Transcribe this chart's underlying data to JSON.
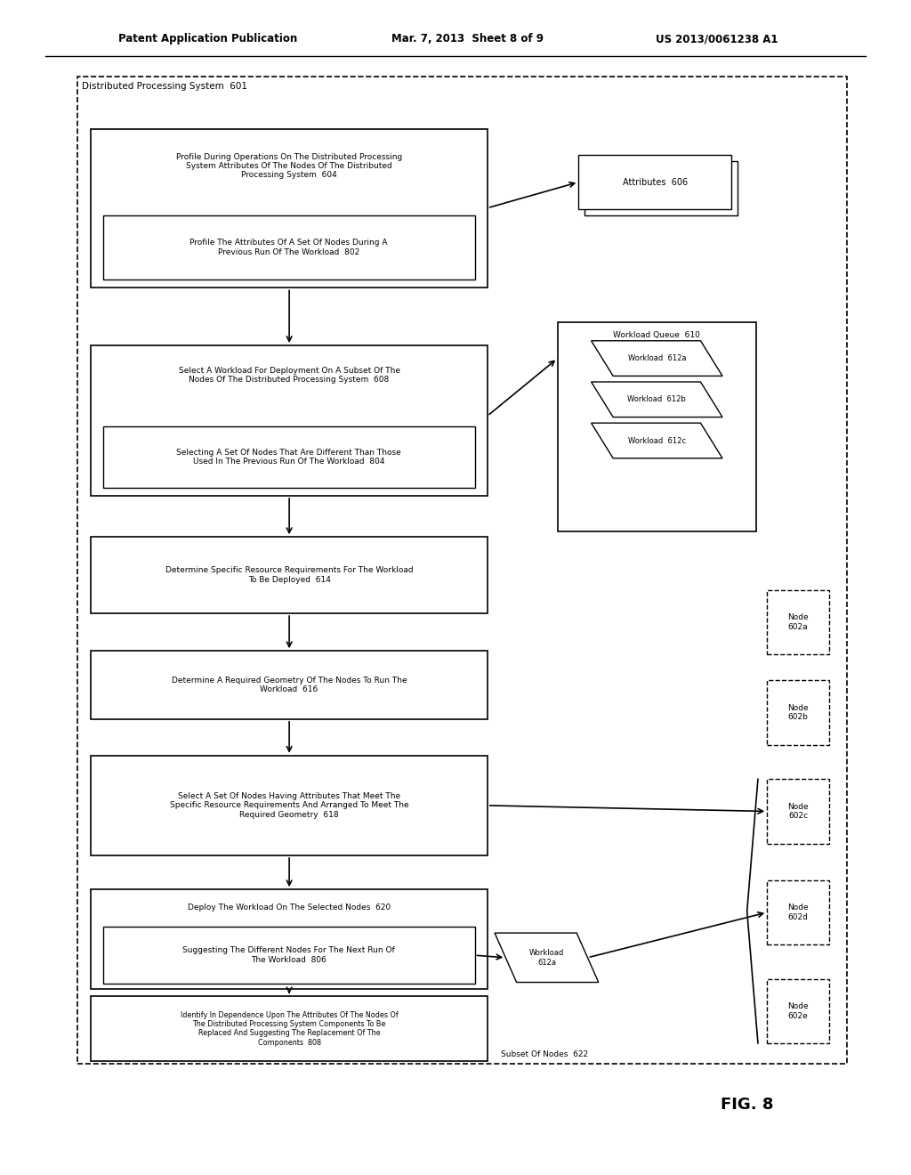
{
  "bg_color": "#ffffff",
  "header_text_left": "Patent Application Publication",
  "header_text_mid": "Mar. 7, 2013  Sheet 8 of 9",
  "header_text_right": "US 2013/0061238 A1",
  "fig_label": "FIG. 8",
  "outer_box_label": "Distributed Processing System  601",
  "box604_text": "Profile During Operations On The Distributed Processing\nSystem Attributes Of The Nodes Of The Distributed\nProcessing System  604",
  "box802_text": "Profile The Attributes Of A Set Of Nodes During A\nPrevious Run Of The Workload  802",
  "box608_text": "Select A Workload For Deployment On A Subset Of The\nNodes Of The Distributed Processing System  608",
  "box804_text": "Selecting A Set Of Nodes That Are Different Than Those\nUsed In The Previous Run Of The Workload  804",
  "box614_text": "Determine Specific Resource Requirements For The Workload\nTo Be Deployed  614",
  "box616_text": "Determine A Required Geometry Of The Nodes To Run The\nWorkload  616",
  "box618_text": "Select A Set Of Nodes Having Attributes That Meet The\nSpecific Resource Requirements And Arranged To Meet The\nRequired Geometry  618",
  "box620_text": "Deploy The Workload On The Selected Nodes  620",
  "box806_text": "Suggesting The Different Nodes For The Next Run Of\nThe Workload  806",
  "box808_text": "Identify In Dependence Upon The Attributes Of The Nodes Of\nThe Distributed Processing System Components To Be\nReplaced And Suggesting The Replacement Of The\nComponents  808",
  "attr_text": "Attributes  606",
  "wq_text": "Workload Queue  610",
  "wl_labels": [
    "Workload  612a",
    "Workload  612b",
    "Workload  612c"
  ],
  "node_labels": [
    "Node\n602a",
    "Node\n602b",
    "Node\n602c",
    "Node\n602d",
    "Node\n602e"
  ],
  "workload612a_text": "Workload\n612a",
  "subset_label": "Subset Of Nodes  622"
}
